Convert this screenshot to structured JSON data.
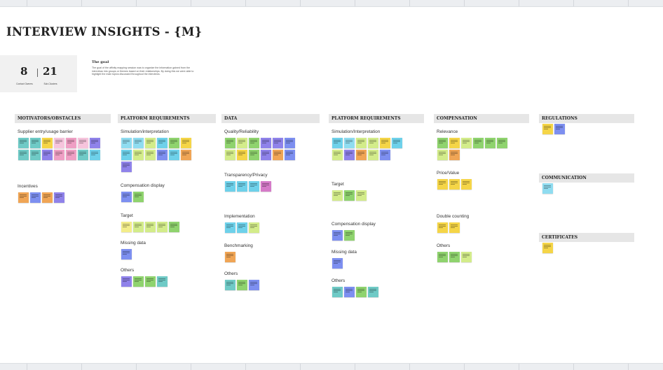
{
  "board": {
    "title": "INTERVIEW INSIGHTS - {M}",
    "stats": {
      "left_value": "8",
      "left_label": "Contact Owners",
      "right_value": "21",
      "right_label": "Sub-Clusters"
    },
    "goal": {
      "title": "The goal",
      "text": "The goal of the affinity mapping session was to organize the information gained from the interviews into groups or themes based on their relationships. By doing this we were able to highlight the main topics discussed throughout the interviews."
    }
  },
  "colors": {
    "teal": "#6fcac6",
    "yellow": "#f5d547",
    "lightyellow": "#f3ed8a",
    "pink": "#ef9fc4",
    "lightpink": "#f6c4dc",
    "orange": "#f0a555",
    "blue": "#7d8ff0",
    "purple": "#8f82ea",
    "lightblue": "#8fdcf0",
    "cyan": "#6ed1ea",
    "green": "#8fd36e",
    "lime": "#d3ec8a",
    "magenta": "#d57ac8",
    "header_bg": "#e6e6e6"
  },
  "columns": [
    {
      "header": "MOTIVATORS/OBSTACLES",
      "groups": [
        {
          "label": "Supplier entry/usage barrier",
          "notes": [
            "teal",
            "teal",
            "yellow",
            "lightpink",
            "pink",
            "lightpink",
            "purple",
            "teal",
            "teal",
            "purple",
            "pink",
            "pink",
            "teal",
            "cyan"
          ]
        },
        {
          "label": "Incentives",
          "notes": [
            "orange",
            "blue",
            "orange",
            "purple"
          ]
        }
      ]
    },
    {
      "header": "PLATFORM REQUIREMENTS",
      "groups": [
        {
          "label": "Simulation/interpretation",
          "notes": [
            "lightblue",
            "lightblue",
            "lime",
            "cyan",
            "green",
            "yellow",
            "cyan",
            "lime",
            "lime",
            "blue",
            "cyan",
            "orange",
            "purple"
          ]
        },
        {
          "label": "Compensation display",
          "notes": [
            "blue",
            "green"
          ]
        },
        {
          "label": "Target",
          "notes": [
            "lightyellow",
            "lime",
            "lime",
            "lime",
            "green"
          ]
        },
        {
          "label": "Missing data",
          "notes": [
            "blue"
          ]
        },
        {
          "label": "Others",
          "notes": [
            "purple",
            "green",
            "green",
            "teal"
          ]
        }
      ]
    },
    {
      "header": "DATA",
      "groups": [
        {
          "label": "Quality/Reliability",
          "notes": [
            "green",
            "lime",
            "green",
            "purple",
            "purple",
            "blue",
            "lime",
            "yellow",
            "green",
            "purple",
            "orange",
            "blue"
          ]
        },
        {
          "label": "Transparency/Privacy",
          "notes": [
            "cyan",
            "cyan",
            "cyan",
            "magenta"
          ]
        },
        {
          "label": "Implementation",
          "notes": [
            "cyan",
            "cyan",
            "lime"
          ]
        },
        {
          "label": "Benchmarking",
          "notes": [
            "orange"
          ]
        },
        {
          "label": "Others",
          "notes": [
            "teal",
            "green",
            "blue"
          ]
        }
      ]
    },
    {
      "header": "PLATFORM REQUIREMENTS",
      "groups": [
        {
          "label": "Simulation/Interpretation",
          "notes": [
            "cyan",
            "lightblue",
            "lime",
            "lime",
            "yellow",
            "cyan",
            "lime",
            "purple",
            "orange",
            "lime",
            "blue"
          ]
        },
        {
          "label": "Target",
          "notes": [
            "lime",
            "green",
            "lime"
          ]
        },
        {
          "label": "Compensation display",
          "notes": [
            "blue",
            "green"
          ]
        },
        {
          "label": "Missing data",
          "notes": [
            "blue"
          ]
        },
        {
          "label": "Others",
          "notes": [
            "teal",
            "blue",
            "green",
            "teal"
          ]
        }
      ]
    },
    {
      "header": "COMPENSATION",
      "groups": [
        {
          "label": "Relevance",
          "notes": [
            "green",
            "yellow",
            "lime",
            "green",
            "green",
            "green",
            "lime",
            "orange"
          ]
        },
        {
          "label": "Price/Value",
          "notes": [
            "yellow",
            "yellow",
            "yellow"
          ]
        },
        {
          "label": "Double counting",
          "notes": [
            "yellow",
            "yellow"
          ]
        },
        {
          "label": "Others",
          "notes": [
            "green",
            "green",
            "lime"
          ]
        }
      ]
    },
    {
      "header": "REGULATIONS",
      "groups": [
        {
          "label": "",
          "notes": [
            "yellow",
            "blue"
          ]
        }
      ]
    },
    {
      "header": "COMMUNICATION",
      "groups": [
        {
          "label": "",
          "notes": [
            "lightblue"
          ]
        }
      ]
    },
    {
      "header": "CERTIFICATES",
      "groups": [
        {
          "label": "",
          "notes": [
            "yellow"
          ]
        }
      ]
    }
  ]
}
